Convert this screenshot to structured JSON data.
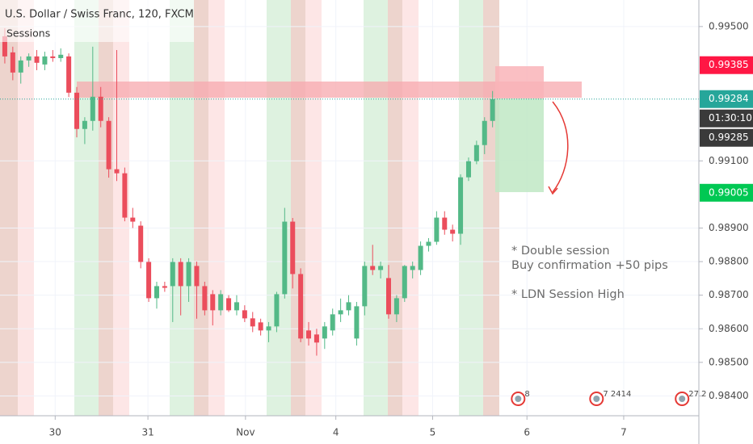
{
  "chart_data": {
    "type": "candlestick",
    "title": "U.S. Dollar / Swiss Franc, 120, FXCM",
    "subtitle": "Sessions",
    "up_color": "#53b987",
    "down_color": "#eb4d5c",
    "x": [
      0,
      1,
      2,
      3,
      4,
      5,
      6,
      7,
      8,
      9,
      10,
      11,
      12,
      13,
      14,
      15,
      16,
      17,
      18,
      19,
      20,
      21,
      22,
      23,
      24,
      25,
      26,
      27,
      28,
      29,
      30,
      31,
      32,
      33,
      34,
      35,
      36,
      37,
      38,
      39,
      40,
      41,
      42,
      43,
      44,
      45,
      46,
      47,
      48,
      49,
      50,
      51,
      52,
      53,
      54,
      55,
      56,
      57,
      58,
      59,
      60,
      61
    ],
    "open": [
      0.99471,
      0.99423,
      0.99363,
      0.99399,
      0.99411,
      0.99387,
      0.99411,
      0.99406,
      0.99411,
      0.99303,
      0.99195,
      0.99219,
      0.99291,
      0.99219,
      0.99075,
      0.99063,
      0.98931,
      0.98907,
      0.98799,
      0.98691,
      0.98727,
      0.98727,
      0.98799,
      0.98727,
      0.98787,
      0.98727,
      0.98703,
      0.98655,
      0.98691,
      0.98655,
      0.98655,
      0.98631,
      0.98619,
      0.98595,
      0.98607,
      0.98703,
      0.98919,
      0.98763,
      0.98595,
      0.98583,
      0.98571,
      0.98595,
      0.98643,
      0.98655,
      0.98571,
      0.98667,
      0.98787,
      0.98775,
      0.98751,
      0.98643,
      0.98691,
      0.98775,
      0.98775,
      0.98847,
      0.98859,
      0.98931,
      0.98895,
      0.98883,
      0.99051,
      0.99099,
      0.99147,
      0.99219
    ],
    "high": [
      0.99495,
      0.9944,
      0.99411,
      0.9942,
      0.9943,
      0.99425,
      0.9943,
      0.99435,
      0.9942,
      0.9932,
      0.9923,
      0.9944,
      0.9932,
      0.9923,
      0.9943,
      0.9908,
      0.9896,
      0.9892,
      0.9881,
      0.9874,
      0.9874,
      0.9881,
      0.9881,
      0.9881,
      0.988,
      0.9874,
      0.98715,
      0.98715,
      0.987,
      0.987,
      0.9867,
      0.9865,
      0.9863,
      0.9862,
      0.9871,
      0.9896,
      0.9893,
      0.9878,
      0.9862,
      0.986,
      0.9862,
      0.9866,
      0.9869,
      0.987,
      0.9868,
      0.988,
      0.9885,
      0.988,
      0.9879,
      0.987,
      0.9879,
      0.988,
      0.9886,
      0.9887,
      0.9895,
      0.9895,
      0.9891,
      0.9906,
      0.9911,
      0.9916,
      0.9923,
      0.99308
    ],
    "low": [
      0.9939,
      0.9934,
      0.9933,
      0.9938,
      0.9937,
      0.9937,
      0.99395,
      0.99395,
      0.9929,
      0.9917,
      0.9915,
      0.9919,
      0.992,
      0.9905,
      0.9904,
      0.9892,
      0.989,
      0.9878,
      0.9868,
      0.9866,
      0.9871,
      0.9862,
      0.9864,
      0.9868,
      0.9863,
      0.9864,
      0.9861,
      0.9864,
      0.9865,
      0.9864,
      0.9862,
      0.9859,
      0.9858,
      0.9856,
      0.9859,
      0.9869,
      0.9872,
      0.9856,
      0.9855,
      0.9852,
      0.9854,
      0.9858,
      0.9862,
      0.9864,
      0.9855,
      0.9864,
      0.9876,
      0.9875,
      0.9863,
      0.9862,
      0.9868,
      0.9875,
      0.9876,
      0.9883,
      0.9885,
      0.9888,
      0.9886,
      0.9885,
      0.9904,
      0.9909,
      0.9912,
      0.992
    ],
    "close": [
      0.99411,
      0.99363,
      0.99399,
      0.99411,
      0.99392,
      0.99411,
      0.99406,
      0.99416,
      0.99303,
      0.99195,
      0.99219,
      0.99291,
      0.99219,
      0.99075,
      0.99063,
      0.98931,
      0.98919,
      0.98799,
      0.98691,
      0.98727,
      0.98722,
      0.98799,
      0.98727,
      0.98799,
      0.98727,
      0.98655,
      0.98655,
      0.98703,
      0.98655,
      0.98679,
      0.98631,
      0.98607,
      0.98595,
      0.98607,
      0.98703,
      0.98919,
      0.98763,
      0.98571,
      0.98571,
      0.98559,
      0.98607,
      0.98643,
      0.98655,
      0.98679,
      0.98667,
      0.98787,
      0.98775,
      0.98787,
      0.98643,
      0.98691,
      0.98787,
      0.98787,
      0.98847,
      0.98859,
      0.98931,
      0.98895,
      0.98883,
      0.99051,
      0.99099,
      0.99147,
      0.99219,
      0.99284
    ],
    "xlim": [
      -0.6,
      86.8
    ],
    "xticks": [
      {
        "value": 6.3,
        "label": "30"
      },
      {
        "value": 17.9,
        "label": "31"
      },
      {
        "value": 30.1,
        "label": "Nov"
      },
      {
        "value": 41.4,
        "label": "4"
      },
      {
        "value": 53.5,
        "label": "5"
      },
      {
        "value": 65.3,
        "label": "6"
      },
      {
        "value": 77.4,
        "label": "7"
      }
    ],
    "ylim": [
      0.98341,
      0.99579
    ],
    "yticks": [
      {
        "value": 0.995,
        "label": "0.99500"
      },
      {
        "value": 0.991,
        "label": "0.99100"
      },
      {
        "value": 0.989,
        "label": "0.98900"
      },
      {
        "value": 0.988,
        "label": "0.98800"
      },
      {
        "value": 0.987,
        "label": "0.98700"
      },
      {
        "value": 0.986,
        "label": "0.98600"
      },
      {
        "value": 0.985,
        "label": "0.98500"
      },
      {
        "value": 0.984,
        "label": "0.98400"
      }
    ],
    "price_labels": [
      {
        "value": 0.99385,
        "label": "0.99385",
        "color": "#ff1744"
      },
      {
        "value": 0.99284,
        "label": "0.99284",
        "color": "#26a69a"
      },
      {
        "value": 0.99285,
        "label": "0.99285",
        "color": "#3a3a3a"
      },
      {
        "value": 0.99005,
        "label": "0.99005",
        "color": "#00c853"
      }
    ],
    "countdown": "01:30:10",
    "annotations": [
      "* Double session",
      "Buy confirmation +50 pips",
      "* LDN Session High"
    ],
    "events": [
      {
        "x": 64.2,
        "label": "8"
      },
      {
        "x": 74.0,
        "label": "7 2414"
      },
      {
        "x": 84.7,
        "label": "27 2"
      }
    ]
  }
}
